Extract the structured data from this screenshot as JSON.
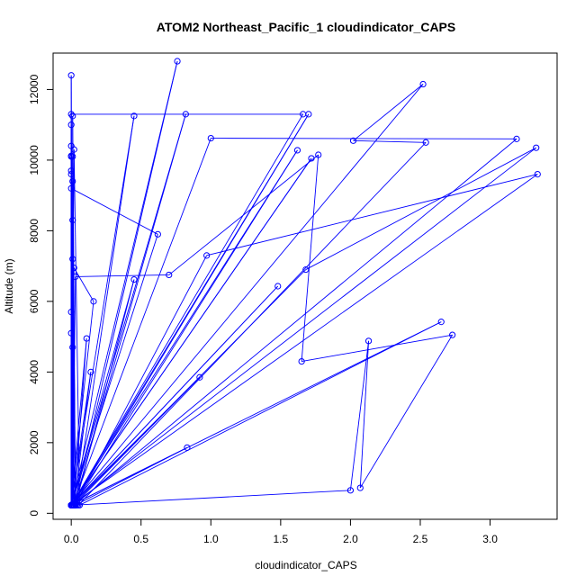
{
  "chart_data": {
    "type": "line",
    "title": "ATOM2 Northeast_Pacific_1 cloudindicator_CAPS",
    "xlabel": "cloudindicator_CAPS",
    "ylabel": "Altitude (m)",
    "xlim": [
      -0.13,
      3.48
    ],
    "ylim": [
      -170,
      13030
    ],
    "x_ticks": [
      0.0,
      0.5,
      1.0,
      1.5,
      2.0,
      2.5,
      3.0
    ],
    "x_tick_labels": [
      "0.0",
      "0.5",
      "1.0",
      "1.5",
      "2.0",
      "2.5",
      "3.0"
    ],
    "y_ticks": [
      0,
      2000,
      4000,
      6000,
      8000,
      10000,
      12000
    ],
    "y_tick_labels": [
      "0",
      "2000",
      "4000",
      "6000",
      "8000",
      "10000",
      "12000"
    ],
    "grid": false,
    "series_color": "#0000ff",
    "series": [
      {
        "x": [
          0.0,
          0.0,
          0.0,
          0.01,
          0.03,
          0.45,
          0.0,
          0.0,
          0.0,
          0.0,
          0.62,
          0.0,
          0.0,
          0.01,
          0.02,
          0.76,
          0.0,
          0.0,
          0.0,
          0.0,
          0.02,
          0.82,
          0.0,
          0.01,
          0.03,
          0.45,
          0.0,
          0.01,
          0.02,
          0.14,
          0.0,
          0.01,
          0.0,
          0.0,
          0.01,
          0.0,
          1.66,
          0.0,
          1.7,
          0.01,
          0.01,
          0.03,
          0.83,
          0.0,
          0.0,
          0.01,
          0.01,
          0.02,
          0.92,
          0.0,
          0.02,
          0.16,
          0.0,
          0.0,
          0.0,
          1.48,
          0.0,
          0.02,
          0.06,
          2.65,
          0.0,
          0.02,
          1.62,
          0.0,
          1.72,
          0.0,
          0.01,
          1.0,
          3.19,
          0.02,
          0.11,
          0.0,
          0.0,
          2.52,
          2.02,
          2.54,
          0.05,
          0.01,
          0.03,
          0.7,
          1.77,
          1.65,
          2.73,
          2.07,
          2.13,
          2.0,
          0.01,
          1.68,
          3.33,
          0.01,
          0.03,
          0.97,
          3.34,
          0.0,
          0.0,
          0.01,
          0.04
        ],
        "y": [
          230,
          5700,
          230,
          9400,
          230,
          6620,
          230,
          11000,
          230,
          9200,
          7900,
          230,
          12400,
          230,
          230,
          12800,
          230,
          9700,
          230,
          9600,
          230,
          11300,
          230,
          7200,
          230,
          11250,
          230,
          4700,
          230,
          4000,
          230,
          8300,
          230,
          10100,
          230,
          11300,
          11300,
          230,
          11300,
          230,
          11250,
          230,
          1860,
          230,
          10400,
          230,
          10100,
          230,
          3850,
          230,
          6950,
          6000,
          230,
          5100,
          230,
          6430,
          230,
          10300,
          230,
          5420,
          230,
          230,
          10280,
          230,
          10050,
          230,
          230,
          10620,
          10600,
          230,
          4950,
          230,
          230,
          12150,
          10550,
          10500,
          230,
          230,
          6700,
          6750,
          10150,
          4300,
          5050,
          720,
          4880,
          650,
          230,
          6900,
          10350,
          230,
          270,
          7300,
          9600,
          230,
          10120,
          230,
          230
        ]
      }
    ]
  }
}
